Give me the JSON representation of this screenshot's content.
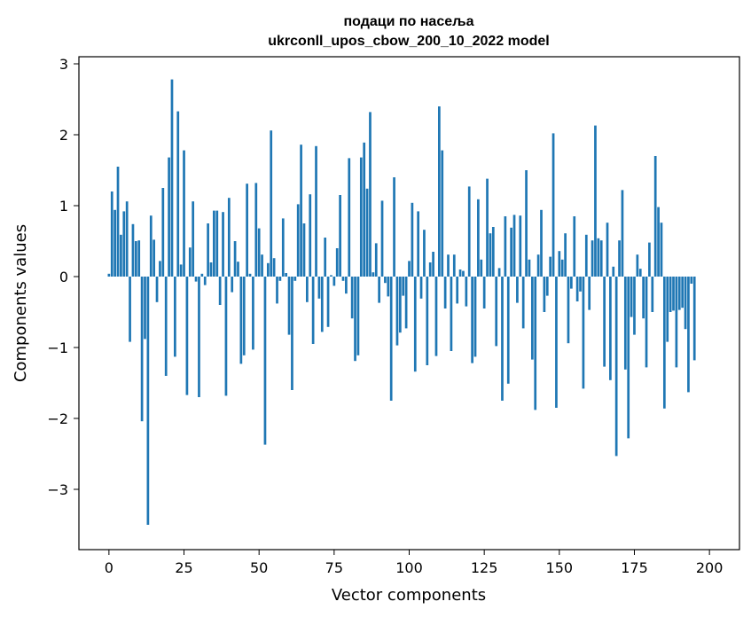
{
  "chart_data": {
    "type": "bar",
    "title": "подаци по насеља",
    "subtitle": "ukrconll_upos_cbow_200_10_2022 model",
    "xlabel": "Vector components",
    "ylabel": "Components values",
    "xlim": [
      -10,
      210
    ],
    "ylim": [
      -3.85,
      3.1
    ],
    "x_ticks": [
      0,
      25,
      50,
      75,
      100,
      125,
      150,
      175,
      200
    ],
    "x_tick_labels": [
      "0",
      "25",
      "50",
      "75",
      "100",
      "125",
      "150",
      "175",
      "200"
    ],
    "y_ticks": [
      -3,
      -2,
      -1,
      0,
      1,
      2,
      3
    ],
    "y_tick_labels": [
      "−3",
      "−2",
      "−1",
      "0",
      "1",
      "2",
      "3"
    ],
    "grid": false,
    "bar_color": "#1f77b4",
    "values": [
      0.04,
      1.2,
      0.94,
      1.55,
      0.59,
      0.92,
      1.06,
      -0.92,
      0.74,
      0.5,
      0.51,
      -2.04,
      -0.88,
      -3.5,
      0.86,
      0.52,
      -0.36,
      0.22,
      1.25,
      -1.4,
      1.68,
      2.78,
      -1.13,
      2.33,
      0.17,
      1.78,
      -1.67,
      0.41,
      1.06,
      -0.07,
      -1.7,
      0.04,
      -0.12,
      0.75,
      0.2,
      0.93,
      0.93,
      -0.4,
      0.91,
      -1.68,
      1.11,
      -0.22,
      0.5,
      0.21,
      -1.23,
      -1.11,
      1.31,
      0.04,
      -1.03,
      1.32,
      0.68,
      0.31,
      -2.37,
      0.19,
      2.06,
      0.26,
      -0.38,
      -0.06,
      0.82,
      0.05,
      -0.82,
      -1.6,
      -0.06,
      1.02,
      1.86,
      0.75,
      -0.36,
      1.16,
      -0.95,
      1.84,
      -0.31,
      -0.78,
      0.55,
      -0.71,
      0.02,
      -0.13,
      0.4,
      1.15,
      -0.06,
      -0.24,
      1.67,
      -0.59,
      -1.19,
      -1.11,
      1.68,
      1.89,
      1.24,
      2.32,
      0.06,
      0.47,
      -0.37,
      1.07,
      -0.09,
      -0.28,
      -1.75,
      1.4,
      -0.97,
      -0.79,
      -0.27,
      -0.73,
      0.22,
      1.04,
      -1.34,
      0.92,
      -0.31,
      0.66,
      -1.25,
      0.2,
      0.35,
      -1.12,
      2.4,
      1.78,
      -0.45,
      0.31,
      -1.05,
      0.31,
      -0.38,
      0.1,
      0.08,
      -0.42,
      1.27,
      -1.22,
      -1.13,
      1.09,
      0.24,
      -0.45,
      1.38,
      0.61,
      0.7,
      -0.98,
      0.12,
      -1.75,
      0.85,
      -1.51,
      0.69,
      0.87,
      -0.37,
      0.86,
      -0.73,
      1.5,
      0.24,
      -1.17,
      -1.88,
      0.31,
      0.94,
      -0.5,
      -0.27,
      0.28,
      2.02,
      -1.85,
      0.36,
      0.24,
      0.61,
      -0.94,
      -0.17,
      0.85,
      -0.35,
      -0.21,
      -1.58,
      0.59,
      -0.47,
      0.51,
      2.13,
      0.54,
      0.51,
      -1.27,
      0.76,
      -1.46,
      0.14,
      -2.53,
      0.51,
      1.22,
      -1.31,
      -2.28,
      -0.57,
      -0.82,
      0.31,
      0.11,
      -0.59,
      -1.28,
      0.48,
      -0.5,
      1.7,
      0.98,
      0.76,
      -1.86,
      -0.92,
      -0.5,
      -0.48,
      -1.28,
      -0.47,
      -0.44,
      -0.74,
      -1.63,
      -0.1,
      -1.18
    ]
  }
}
